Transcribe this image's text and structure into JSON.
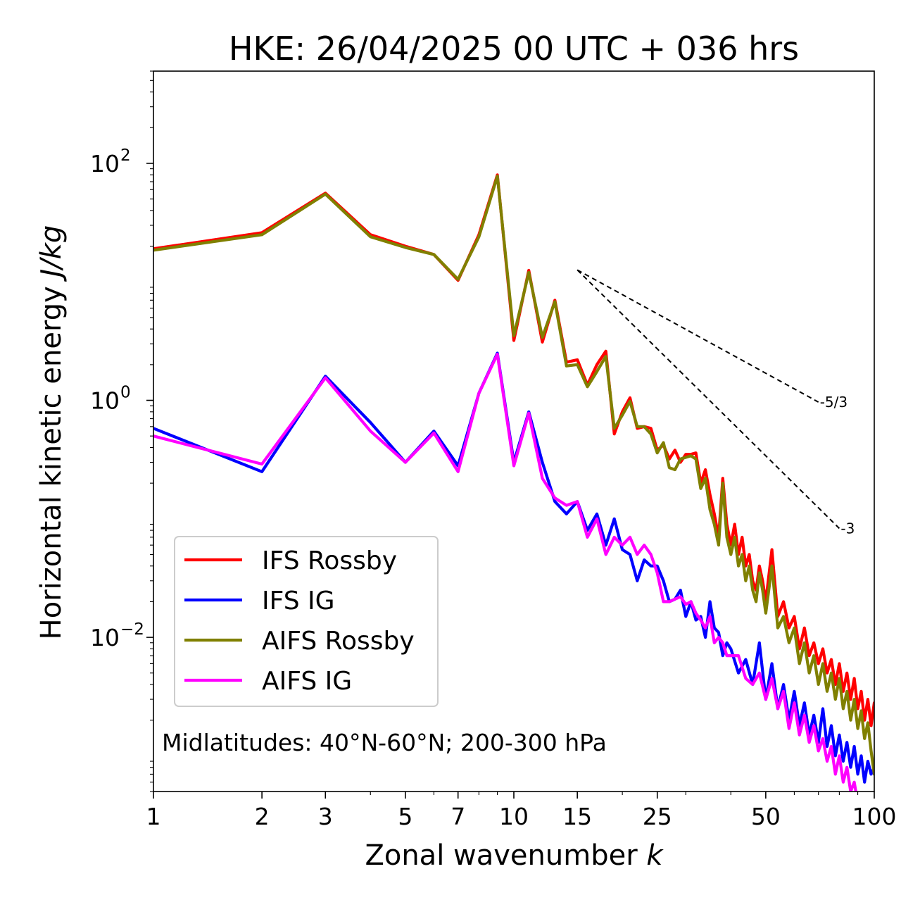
{
  "chart_data": {
    "type": "line",
    "title": "HKE: 26/04/2025 00 UTC + 036 hrs",
    "xlabel": "Zonal wavenumber",
    "xlabel_symbol": "k",
    "ylabel": "Horizontal kinetic energy",
    "ylabel_units": "J/kg",
    "xscale": "log",
    "yscale": "log",
    "xlim": [
      1,
      100
    ],
    "ylim": [
      0.0005,
      600
    ],
    "xticks": [
      {
        "value": 1,
        "label": "1"
      },
      {
        "value": 2,
        "label": "2"
      },
      {
        "value": 3,
        "label": "3"
      },
      {
        "value": 5,
        "label": "5"
      },
      {
        "value": 7,
        "label": "7"
      },
      {
        "value": 10,
        "label": "10"
      },
      {
        "value": 15,
        "label": "15"
      },
      {
        "value": 25,
        "label": "25"
      },
      {
        "value": 50,
        "label": "50"
      },
      {
        "value": 100,
        "label": "100"
      }
    ],
    "yticks": [
      {
        "value": 0.01,
        "base": "10",
        "exp": "−2"
      },
      {
        "value": 1,
        "base": "10",
        "exp": "0"
      },
      {
        "value": 100,
        "base": "10",
        "exp": "2"
      }
    ],
    "annotation": "Midlatitudes: 40°N-60°N; 200-300 hPa",
    "legend_position": "lower-left",
    "reference_slopes": [
      {
        "label": "-5/3",
        "slope": -1.6667,
        "x": [
          15,
          70
        ],
        "y0": 12.6
      },
      {
        "label": "-3",
        "slope": -3,
        "x": [
          15,
          80
        ],
        "y0": 12.6
      }
    ],
    "series": [
      {
        "name": "IFS Rossby",
        "color": "#ff0000",
        "x": [
          1,
          2,
          3,
          4,
          5,
          6,
          7,
          8,
          9,
          10,
          11,
          12,
          13,
          14,
          15,
          16,
          17,
          18,
          19,
          20,
          21,
          22,
          23,
          24,
          25,
          26,
          27,
          28,
          29,
          30,
          31,
          32,
          33,
          34,
          35,
          36,
          37,
          38,
          39,
          40,
          41,
          42,
          43,
          44,
          45,
          46,
          47,
          48,
          49,
          50,
          52,
          54,
          56,
          58,
          60,
          62,
          64,
          66,
          68,
          70,
          72,
          74,
          76,
          78,
          80,
          82,
          84,
          86,
          88,
          90,
          92,
          94,
          96,
          98,
          100
        ],
        "y": [
          19,
          26,
          56,
          25,
          20,
          17,
          10.3,
          25,
          80,
          3.2,
          12.5,
          3.1,
          7,
          2.1,
          2.2,
          1.35,
          2.0,
          2.6,
          0.52,
          0.8,
          1.05,
          0.58,
          0.6,
          0.58,
          0.38,
          0.42,
          0.32,
          0.38,
          0.3,
          0.35,
          0.35,
          0.36,
          0.2,
          0.26,
          0.16,
          0.11,
          0.07,
          0.22,
          0.09,
          0.06,
          0.09,
          0.05,
          0.07,
          0.04,
          0.05,
          0.03,
          0.025,
          0.04,
          0.03,
          0.02,
          0.055,
          0.015,
          0.02,
          0.012,
          0.015,
          0.008,
          0.012,
          0.007,
          0.009,
          0.006,
          0.008,
          0.005,
          0.0065,
          0.004,
          0.006,
          0.0035,
          0.005,
          0.003,
          0.0045,
          0.0025,
          0.0035,
          0.002,
          0.003,
          0.0018,
          0.0028
        ]
      },
      {
        "name": "IFS IG",
        "color": "#0000ff",
        "x": [
          1,
          2,
          3,
          4,
          5,
          6,
          7,
          8,
          9,
          10,
          11,
          12,
          13,
          14,
          15,
          16,
          17,
          18,
          19,
          20,
          21,
          22,
          23,
          24,
          25,
          26,
          27,
          28,
          29,
          30,
          31,
          32,
          33,
          34,
          35,
          36,
          37,
          38,
          39,
          40,
          42,
          44,
          46,
          48,
          50,
          52,
          54,
          56,
          58,
          60,
          62,
          64,
          66,
          68,
          70,
          72,
          74,
          76,
          78,
          80,
          82,
          84,
          86,
          88,
          90,
          92,
          94,
          96,
          98,
          100
        ],
        "y": [
          0.58,
          0.25,
          1.6,
          0.65,
          0.3,
          0.55,
          0.28,
          1.15,
          2.5,
          0.3,
          0.8,
          0.3,
          0.14,
          0.11,
          0.14,
          0.08,
          0.11,
          0.06,
          0.1,
          0.055,
          0.05,
          0.03,
          0.045,
          0.04,
          0.04,
          0.03,
          0.02,
          0.021,
          0.025,
          0.015,
          0.02,
          0.014,
          0.015,
          0.01,
          0.02,
          0.012,
          0.011,
          0.007,
          0.009,
          0.008,
          0.005,
          0.0065,
          0.004,
          0.009,
          0.003,
          0.006,
          0.0025,
          0.004,
          0.002,
          0.0035,
          0.0018,
          0.0028,
          0.0015,
          0.0022,
          0.0013,
          0.0025,
          0.0012,
          0.0018,
          0.001,
          0.0015,
          0.0009,
          0.0013,
          0.0008,
          0.0012,
          0.0007,
          0.001,
          0.0006,
          0.0009,
          0.0007,
          0.0008
        ]
      },
      {
        "name": "AIFS Rossby",
        "color": "#808000",
        "x": [
          1,
          2,
          3,
          4,
          5,
          6,
          7,
          8,
          9,
          10,
          11,
          12,
          13,
          14,
          15,
          16,
          17,
          18,
          19,
          20,
          21,
          22,
          23,
          24,
          25,
          26,
          27,
          28,
          29,
          30,
          31,
          32,
          33,
          34,
          35,
          36,
          37,
          38,
          39,
          40,
          41,
          42,
          43,
          44,
          45,
          46,
          47,
          48,
          49,
          50,
          52,
          54,
          56,
          58,
          60,
          62,
          64,
          66,
          68,
          70,
          72,
          74,
          76,
          78,
          80,
          82,
          84,
          86,
          88,
          90,
          92,
          94,
          96,
          98,
          100
        ],
        "y": [
          18.5,
          25,
          55,
          24,
          19.5,
          17,
          10.5,
          24,
          78,
          3.5,
          12,
          3.4,
          6.8,
          1.95,
          2.0,
          1.3,
          1.75,
          2.35,
          0.58,
          0.75,
          0.98,
          0.6,
          0.6,
          0.52,
          0.36,
          0.44,
          0.27,
          0.26,
          0.32,
          0.33,
          0.34,
          0.32,
          0.18,
          0.22,
          0.12,
          0.09,
          0.06,
          0.2,
          0.07,
          0.05,
          0.07,
          0.04,
          0.05,
          0.03,
          0.04,
          0.025,
          0.02,
          0.035,
          0.025,
          0.016,
          0.04,
          0.012,
          0.015,
          0.009,
          0.012,
          0.006,
          0.009,
          0.005,
          0.007,
          0.004,
          0.006,
          0.0035,
          0.005,
          0.003,
          0.0045,
          0.0025,
          0.0035,
          0.002,
          0.003,
          0.0017,
          0.0024,
          0.0014,
          0.0019,
          0.0011,
          0.0007
        ]
      },
      {
        "name": "AIFS IG",
        "color": "#ff00ff",
        "x": [
          1,
          2,
          3,
          4,
          5,
          6,
          7,
          8,
          9,
          10,
          11,
          12,
          13,
          14,
          15,
          16,
          17,
          18,
          19,
          20,
          21,
          22,
          23,
          24,
          25,
          26,
          27,
          28,
          29,
          30,
          31,
          32,
          33,
          34,
          35,
          36,
          37,
          38,
          39,
          40,
          42,
          44,
          46,
          48,
          50,
          52,
          54,
          56,
          58,
          60,
          62,
          64,
          66,
          68,
          70,
          72,
          74,
          76,
          78,
          80,
          82,
          84,
          86,
          88,
          90
        ],
        "y": [
          0.5,
          0.29,
          1.55,
          0.55,
          0.3,
          0.53,
          0.25,
          1.15,
          2.45,
          0.28,
          0.78,
          0.22,
          0.15,
          0.13,
          0.14,
          0.07,
          0.1,
          0.05,
          0.07,
          0.06,
          0.07,
          0.05,
          0.06,
          0.05,
          0.035,
          0.02,
          0.02,
          0.021,
          0.022,
          0.019,
          0.02,
          0.016,
          0.014,
          0.012,
          0.015,
          0.009,
          0.01,
          0.009,
          0.007,
          0.007,
          0.007,
          0.0045,
          0.004,
          0.005,
          0.003,
          0.0045,
          0.0025,
          0.0035,
          0.0017,
          0.0028,
          0.0015,
          0.0022,
          0.0013,
          0.0018,
          0.0011,
          0.0014,
          0.0009,
          0.0012,
          0.0007,
          0.001,
          0.0006,
          0.0008,
          0.0005,
          0.0006,
          0.0004
        ]
      }
    ]
  }
}
